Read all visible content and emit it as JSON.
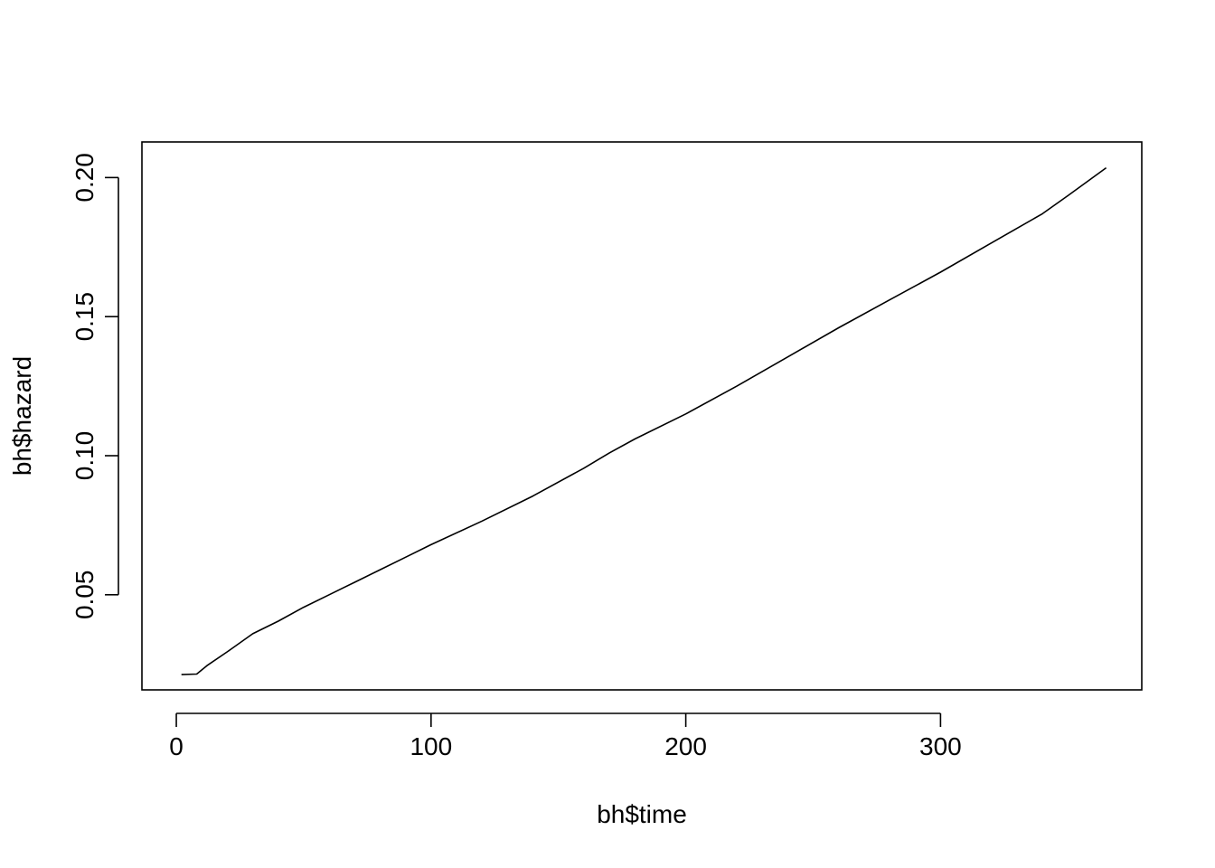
{
  "chart_data": {
    "type": "line",
    "title": "",
    "xlabel": "bh$time",
    "ylabel": "bh$hazard",
    "xlim": [
      -13.5,
      379
    ],
    "ylim": [
      0.0158,
      0.2128
    ],
    "x_ticks": [
      0,
      100,
      200,
      300
    ],
    "y_ticks": [
      0.05,
      0.1,
      0.15,
      0.2
    ],
    "x_tick_labels": [
      "0",
      "100",
      "200",
      "300"
    ],
    "y_tick_labels": [
      "0.05",
      "0.10",
      "0.15",
      "0.20"
    ],
    "grid": false,
    "box": true,
    "line_color": "#000000",
    "series": [
      {
        "x": [
          2,
          8,
          12,
          20,
          30,
          40,
          50,
          60,
          70,
          80,
          90,
          100,
          120,
          140,
          160,
          170,
          180,
          200,
          220,
          240,
          260,
          280,
          300,
          320,
          340,
          350,
          365
        ],
        "values": [
          0.0213,
          0.0215,
          0.0245,
          0.0295,
          0.036,
          0.0405,
          0.0455,
          0.05,
          0.0545,
          0.059,
          0.0635,
          0.068,
          0.0765,
          0.0855,
          0.0955,
          0.101,
          0.106,
          0.115,
          0.125,
          0.1355,
          0.146,
          0.156,
          0.166,
          0.1765,
          0.187,
          0.1935,
          0.2035
        ]
      }
    ]
  }
}
